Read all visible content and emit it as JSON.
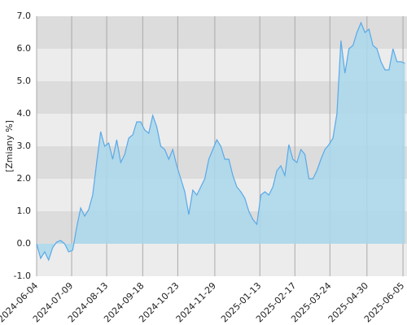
{
  "chart_data": {
    "type": "area",
    "y_label": "[Zmiany %]",
    "x": [
      "2024-06-04",
      "2024-06-08",
      "2024-06-12",
      "2024-06-16",
      "2024-06-20",
      "2024-06-24",
      "2024-06-28",
      "2024-07-02",
      "2024-07-06",
      "2024-07-10",
      "2024-07-14",
      "2024-07-18",
      "2024-07-22",
      "2024-07-26",
      "2024-07-30",
      "2024-08-03",
      "2024-08-07",
      "2024-08-11",
      "2024-08-15",
      "2024-08-19",
      "2024-08-23",
      "2024-08-27",
      "2024-08-31",
      "2024-09-04",
      "2024-09-08",
      "2024-09-12",
      "2024-09-16",
      "2024-09-20",
      "2024-09-24",
      "2024-09-28",
      "2024-10-02",
      "2024-10-06",
      "2024-10-10",
      "2024-10-14",
      "2024-10-18",
      "2024-10-22",
      "2024-10-26",
      "2024-10-30",
      "2024-11-03",
      "2024-11-07",
      "2024-11-11",
      "2024-11-15",
      "2024-11-19",
      "2024-11-23",
      "2024-11-27",
      "2024-12-01",
      "2024-12-05",
      "2024-12-09",
      "2024-12-13",
      "2024-12-17",
      "2024-12-21",
      "2024-12-25",
      "2024-12-29",
      "2025-01-02",
      "2025-01-06",
      "2025-01-10",
      "2025-01-14",
      "2025-01-18",
      "2025-01-22",
      "2025-01-26",
      "2025-01-30",
      "2025-02-03",
      "2025-02-07",
      "2025-02-11",
      "2025-02-15",
      "2025-02-19",
      "2025-02-23",
      "2025-02-27",
      "2025-03-03",
      "2025-03-07",
      "2025-03-11",
      "2025-03-15",
      "2025-03-19",
      "2025-03-23",
      "2025-03-27",
      "2025-03-31",
      "2025-04-04",
      "2025-04-08",
      "2025-04-12",
      "2025-04-16",
      "2025-04-20",
      "2025-04-24",
      "2025-04-28",
      "2025-05-02",
      "2025-05-06",
      "2025-05-10",
      "2025-05-14",
      "2025-05-18",
      "2025-05-22",
      "2025-05-26",
      "2025-05-30",
      "2025-06-03",
      "2025-06-07"
    ],
    "series": [
      {
        "color": "#5aa9e6",
        "fill": "#a9d8ec",
        "values": [
          0.0,
          -0.45,
          -0.25,
          -0.5,
          -0.12,
          0.05,
          0.1,
          0.0,
          -0.25,
          -0.2,
          0.5,
          1.1,
          0.85,
          1.05,
          1.5,
          2.5,
          3.45,
          3.0,
          3.1,
          2.6,
          3.2,
          2.5,
          2.75,
          3.25,
          3.35,
          3.75,
          3.75,
          3.5,
          3.4,
          3.95,
          3.6,
          3.0,
          2.9,
          2.6,
          2.9,
          2.4,
          2.0,
          1.6,
          0.9,
          1.65,
          1.5,
          1.75,
          2.0,
          2.6,
          2.9,
          3.2,
          3.0,
          2.6,
          2.6,
          2.1,
          1.75,
          1.6,
          1.4,
          1.0,
          0.75,
          0.6,
          1.5,
          1.6,
          1.5,
          1.75,
          2.25,
          2.4,
          2.1,
          3.05,
          2.6,
          2.5,
          2.9,
          2.75,
          2.0,
          2.0,
          2.25,
          2.6,
          2.9,
          3.05,
          3.25,
          4.0,
          6.25,
          5.25,
          6.0,
          6.1,
          6.5,
          6.8,
          6.5,
          6.6,
          6.1,
          6.0,
          5.6,
          5.35,
          5.35,
          6.0,
          5.6,
          5.6,
          5.55
        ]
      }
    ],
    "xlim": [
      "2024-06-04",
      "2025-06-09"
    ],
    "xticks": [
      "2024-06-04",
      "2024-07-09",
      "2024-08-13",
      "2024-09-18",
      "2024-10-23",
      "2024-11-29",
      "2025-01-13",
      "2025-02-17",
      "2025-03-24",
      "2025-04-30",
      "2025-06-05"
    ],
    "ylim": [
      -1,
      7
    ],
    "yticks": [
      {
        "value": -1,
        "label": "-1.0"
      },
      {
        "value": 0,
        "label": "0.0"
      },
      {
        "value": 1,
        "label": "1.0"
      },
      {
        "value": 2,
        "label": "2.0"
      },
      {
        "value": 3,
        "label": "3.0"
      },
      {
        "value": 4,
        "label": "4.0"
      },
      {
        "value": 5,
        "label": "5.0"
      },
      {
        "value": 6,
        "label": "6.0"
      },
      {
        "value": 7,
        "label": "7.0"
      }
    ],
    "band_colors": [
      "#ececec",
      "#dcdcdc"
    ],
    "grid": true
  }
}
